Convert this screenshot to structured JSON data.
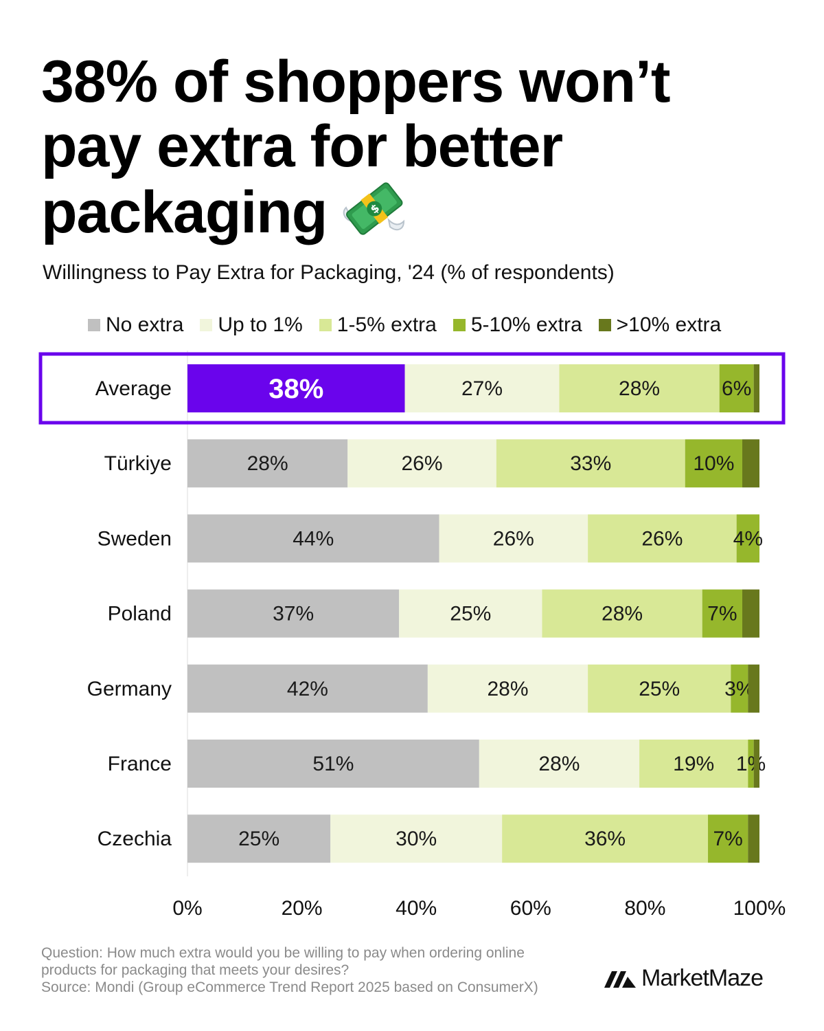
{
  "header": {
    "title_line1": "38% of shoppers won’t",
    "title_line2": "pay extra for better",
    "title_line3": "packaging",
    "emoji": "money-with-wings-icon",
    "subtitle": "Willingness to Pay Extra for Packaging, '24 (% of respondents)"
  },
  "chart_data": {
    "type": "bar",
    "orientation": "horizontal",
    "stacked": true,
    "title": "38% of shoppers won’t pay extra for better packaging",
    "subtitle": "Willingness to Pay Extra for Packaging, '24 (% of respondents)",
    "categories": [
      "Average",
      "Türkiye",
      "Sweden",
      "Poland",
      "Germany",
      "France",
      "Czechia"
    ],
    "series": [
      {
        "name": "No extra",
        "color": "#c0c0c0",
        "values": [
          38,
          28,
          44,
          37,
          42,
          51,
          25
        ]
      },
      {
        "name": "Up to 1%",
        "color": "#f1f5dc",
        "values": [
          27,
          26,
          26,
          25,
          28,
          28,
          30
        ]
      },
      {
        "name": "1-5% extra",
        "color": "#d8e896",
        "values": [
          28,
          33,
          26,
          28,
          25,
          19,
          36
        ]
      },
      {
        "name": "5-10% extra",
        "color": "#96b72c",
        "values": [
          6,
          10,
          4,
          7,
          3,
          1,
          7
        ]
      },
      {
        "name": ">10% extra",
        "color": "#68781d",
        "values": [
          1,
          3,
          0,
          3,
          2,
          1,
          2
        ]
      }
    ],
    "data_labels": [
      [
        "38%",
        "27%",
        "28%",
        "6%",
        ""
      ],
      [
        "28%",
        "26%",
        "33%",
        "10%",
        ""
      ],
      [
        "44%",
        "26%",
        "26%",
        "4%",
        ""
      ],
      [
        "37%",
        "25%",
        "28%",
        "7%",
        ""
      ],
      [
        "42%",
        "28%",
        "25%",
        "3%",
        ""
      ],
      [
        "51%",
        "28%",
        "19%",
        "1%",
        ""
      ],
      [
        "25%",
        "30%",
        "36%",
        "7%",
        ""
      ]
    ],
    "xlim": [
      0,
      100
    ],
    "x_ticks": [
      "0%",
      "20%",
      "40%",
      "60%",
      "80%",
      "100%"
    ],
    "x_tick_values": [
      0,
      20,
      40,
      60,
      80,
      100
    ],
    "highlight": {
      "category": "Average",
      "series": "No extra",
      "color": "#6a04ec",
      "border_color": "#6a04ec"
    },
    "legend_position": "top",
    "grid": false
  },
  "footer": {
    "question": "Question: How much extra would you be willing to pay when ordering online",
    "question_cont": "products for packaging that meets your desires?",
    "source": "Source: Mondi (Group eCommerce Trend Report 2025 based on ConsumerX)",
    "brand": "MarketMaze",
    "brand_icon": "marketmaze-logo-icon"
  }
}
